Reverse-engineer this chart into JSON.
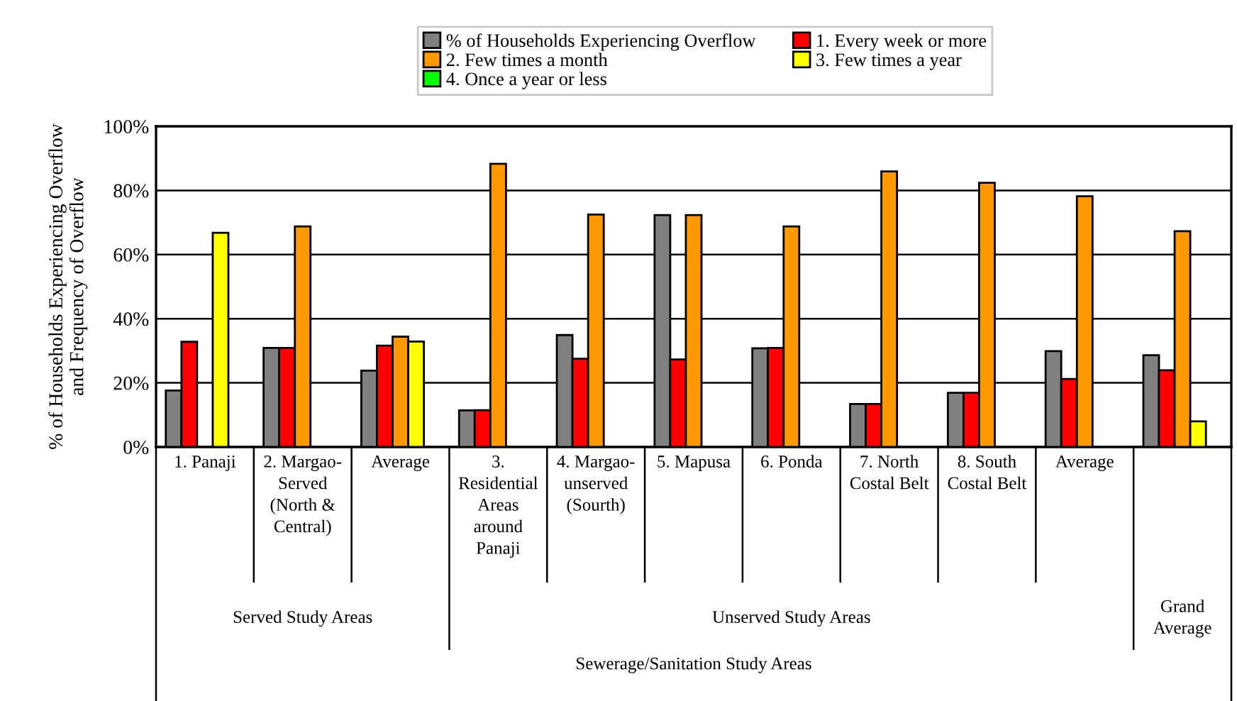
{
  "chart_data": {
    "type": "bar",
    "ylabel": "% of Households Experiencing Overflow\nand Frequency of Overflow",
    "categories": [
      "1. Panaji",
      "2. Margao-\nServed\n(North &\nCentral)",
      "Average",
      "3.\nResidential\nAreas\naround\nPanaji",
      "4. Margao-\nunserved\n(Sourth)",
      "5. Mapusa",
      "6. Ponda",
      "7. North\nCostal Belt",
      "8. South\nCostal Belt",
      "Average",
      null
    ],
    "series": [
      {
        "name": "% of Households Experiencing Overflow",
        "color": "#808080",
        "values": [
          17.6,
          30.9,
          23.8,
          11.4,
          34.9,
          72.3,
          30.8,
          13.4,
          16.9,
          29.9,
          28.6
        ]
      },
      {
        "name": "1. Every week or more",
        "color": "#ff0000",
        "values": [
          32.8,
          30.9,
          31.6,
          11.5,
          27.5,
          27.3,
          30.9,
          13.4,
          16.9,
          21.2,
          23.9
        ]
      },
      {
        "name": "2. Few times a month",
        "color": "#ff9900",
        "values": [
          null,
          68.8,
          34.4,
          88.3,
          72.5,
          72.3,
          68.8,
          85.9,
          82.4,
          78.2,
          67.3
        ]
      },
      {
        "name": "3. Few times a year",
        "color": "#ffff00",
        "values": [
          66.8,
          null,
          32.9,
          null,
          null,
          null,
          null,
          null,
          null,
          null,
          8.0
        ]
      },
      {
        "name": "4. Once a year or less",
        "color": "#00ff00",
        "values": [
          null,
          null,
          null,
          null,
          null,
          null,
          null,
          null,
          null,
          null,
          null
        ]
      }
    ],
    "ylim": [
      0,
      100
    ],
    "yticks": [
      {
        "value": 0,
        "label": "0%"
      },
      {
        "value": 20,
        "label": "20%"
      },
      {
        "value": 40,
        "label": "40%"
      },
      {
        "value": 60,
        "label": "60%"
      },
      {
        "value": 80,
        "label": "80%"
      },
      {
        "value": 100,
        "label": "100%"
      }
    ],
    "grid": "y",
    "legend": "top",
    "annotations": [
      "Served Study Areas",
      "Unserved Study Areas",
      "Grand\nAverage",
      "Sewerage/Sanitation Study Areas"
    ]
  }
}
